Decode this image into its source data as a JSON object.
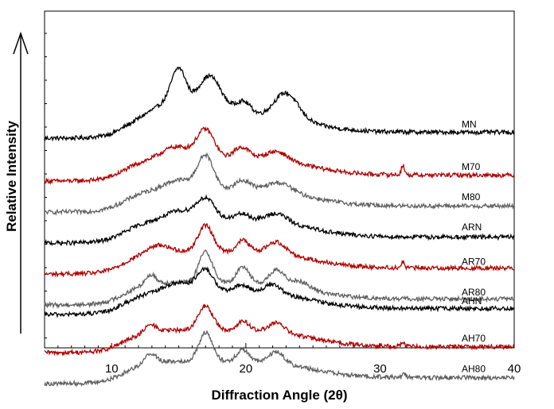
{
  "chart_data": {
    "type": "line",
    "title": "",
    "xlabel": "Diffraction Angle (2θ)",
    "ylabel": "Relative Intensity",
    "xlim": [
      5,
      40
    ],
    "x_ticks": [
      "10",
      "20",
      "30",
      "40"
    ],
    "x_tick_values": [
      10,
      20,
      30,
      40
    ],
    "grid": false,
    "legend": "inline labels at right end of each trace",
    "colors": {
      "black": "#000000",
      "red": "#b00000",
      "gray": "#606060"
    },
    "series": [
      {
        "name": "MN",
        "color": "#000000",
        "baseline": 0.86,
        "peaks": [
          [
            15.0,
            0.155,
            0.55
          ],
          [
            17.3,
            0.165,
            0.9
          ],
          [
            19.8,
            0.06,
            0.6
          ],
          [
            23.0,
            0.11,
            0.9
          ],
          [
            14.2,
            0.05,
            1.2
          ]
        ]
      },
      {
        "name": "M70",
        "color": "#b00000",
        "baseline": 0.68,
        "peaks": [
          [
            17.0,
            0.12,
            0.65
          ],
          [
            14.8,
            0.05,
            1.0
          ],
          [
            19.7,
            0.05,
            0.6
          ],
          [
            22.3,
            0.04,
            0.8
          ],
          [
            31.7,
            0.04,
            0.12
          ]
        ]
      },
      {
        "name": "M80",
        "color": "#606060",
        "baseline": 0.55,
        "peaks": [
          [
            17.0,
            0.14,
            0.6
          ],
          [
            15.0,
            0.04,
            1.0
          ],
          [
            19.8,
            0.04,
            0.6
          ],
          [
            22.5,
            0.04,
            0.9
          ]
        ]
      },
      {
        "name": "ARN",
        "color": "#000000",
        "baseline": 0.42,
        "peaks": [
          [
            17.0,
            0.09,
            0.7
          ],
          [
            15.0,
            0.04,
            1.0
          ],
          [
            19.7,
            0.03,
            0.6
          ],
          [
            22.3,
            0.04,
            0.8
          ]
        ]
      },
      {
        "name": "AR70",
        "color": "#b00000",
        "baseline": 0.29,
        "peaks": [
          [
            17.0,
            0.11,
            0.55
          ],
          [
            19.8,
            0.05,
            0.45
          ],
          [
            22.3,
            0.05,
            0.7
          ],
          [
            13.5,
            0.03,
            0.8
          ],
          [
            31.7,
            0.025,
            0.12
          ]
        ]
      },
      {
        "name": "AR80",
        "color": "#606060",
        "baseline": 0.16,
        "peaks": [
          [
            17.0,
            0.13,
            0.5
          ],
          [
            19.8,
            0.07,
            0.45
          ],
          [
            22.3,
            0.06,
            0.55
          ],
          [
            12.9,
            0.04,
            0.4
          ],
          [
            24.0,
            0.03,
            0.7
          ]
        ]
      },
      {
        "name": "AHN",
        "color": "#000000",
        "baseline": 0.12,
        "peaks": [
          [
            17.0,
            0.09,
            0.6
          ],
          [
            15.0,
            0.04,
            1.0
          ],
          [
            19.7,
            0.03,
            0.6
          ],
          [
            22.0,
            0.04,
            0.6
          ]
        ]
      },
      {
        "name": "AH70",
        "color": "#b00000",
        "baseline": -0.04,
        "peaks": [
          [
            17.0,
            0.1,
            0.55
          ],
          [
            19.8,
            0.04,
            0.45
          ],
          [
            22.3,
            0.04,
            0.6
          ],
          [
            12.9,
            0.03,
            0.4
          ],
          [
            31.7,
            0.02,
            0.12
          ]
        ]
      },
      {
        "name": "AH80",
        "color": "#606060",
        "baseline": -0.17,
        "peaks": [
          [
            17.0,
            0.12,
            0.5
          ],
          [
            19.8,
            0.05,
            0.45
          ],
          [
            22.3,
            0.05,
            0.55
          ],
          [
            12.9,
            0.04,
            0.4
          ],
          [
            31.8,
            0.015,
            0.12
          ]
        ]
      }
    ]
  }
}
